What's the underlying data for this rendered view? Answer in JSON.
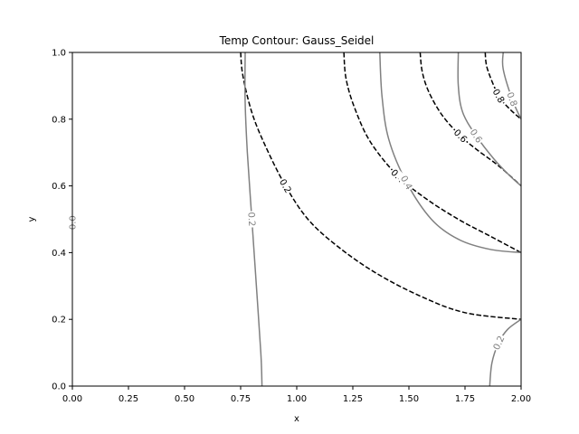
{
  "chart_data": {
    "type": "contour",
    "title": "Temp Contour: Gauss_Seidel",
    "xlabel": "x",
    "ylabel": "y",
    "xlim": [
      0.0,
      2.0
    ],
    "ylim": [
      0.0,
      1.0
    ],
    "x_ticks": [
      "0.00",
      "0.25",
      "0.50",
      "0.75",
      "1.00",
      "1.25",
      "1.50",
      "1.75",
      "2.00"
    ],
    "y_ticks": [
      "0.0",
      "0.2",
      "0.4",
      "0.6",
      "0.8",
      "1.0"
    ],
    "grid": false,
    "series": [
      {
        "style": "dashed",
        "color": "#000000",
        "contours": [
          {
            "label": "0.2",
            "label_at": [
              0.95,
              0.6
            ],
            "points": [
              [
                0.75,
                1.0
              ],
              [
                0.76,
                0.93
              ],
              [
                0.8,
                0.82
              ],
              [
                0.86,
                0.72
              ],
              [
                0.95,
                0.6
              ],
              [
                1.05,
                0.5
              ],
              [
                1.18,
                0.42
              ],
              [
                1.35,
                0.34
              ],
              [
                1.55,
                0.27
              ],
              [
                1.75,
                0.22
              ],
              [
                2.0,
                0.2
              ]
            ]
          },
          {
            "label": "0.4",
            "label_at": [
              1.45,
              0.63
            ],
            "points": [
              [
                1.21,
                1.0
              ],
              [
                1.22,
                0.92
              ],
              [
                1.26,
                0.83
              ],
              [
                1.33,
                0.73
              ],
              [
                1.45,
                0.63
              ],
              [
                1.58,
                0.56
              ],
              [
                1.72,
                0.5
              ],
              [
                1.86,
                0.45
              ],
              [
                2.0,
                0.4
              ]
            ]
          },
          {
            "label": "0.6",
            "label_at": [
              1.73,
              0.75
            ],
            "points": [
              [
                1.55,
                1.0
              ],
              [
                1.56,
                0.94
              ],
              [
                1.59,
                0.88
              ],
              [
                1.65,
                0.81
              ],
              [
                1.73,
                0.75
              ],
              [
                1.8,
                0.71
              ],
              [
                1.9,
                0.66
              ],
              [
                2.0,
                0.6
              ]
            ]
          },
          {
            "label": "0.8",
            "label_at": [
              1.9,
              0.87
            ],
            "points": [
              [
                1.84,
                1.0
              ],
              [
                1.85,
                0.95
              ],
              [
                1.9,
                0.87
              ],
              [
                1.95,
                0.83
              ],
              [
                2.0,
                0.8
              ]
            ]
          }
        ]
      },
      {
        "style": "solid",
        "color": "#808080",
        "contours": [
          {
            "label": "0.2",
            "label_at": [
              0.8,
              0.5
            ],
            "points": [
              [
                0.77,
                1.0
              ],
              [
                0.77,
                0.85
              ],
              [
                0.78,
                0.7
              ],
              [
                0.8,
                0.5
              ],
              [
                0.82,
                0.3
              ],
              [
                0.84,
                0.1
              ],
              [
                0.845,
                0.0
              ]
            ]
          },
          {
            "label": "0.4",
            "label_at": [
              1.49,
              0.61
            ],
            "points": [
              [
                1.37,
                1.0
              ],
              [
                1.38,
                0.87
              ],
              [
                1.41,
                0.74
              ],
              [
                1.49,
                0.61
              ],
              [
                1.6,
                0.5
              ],
              [
                1.72,
                0.44
              ],
              [
                1.86,
                0.41
              ],
              [
                2.0,
                0.4
              ]
            ]
          },
          {
            "label": "0.6",
            "label_at": [
              1.8,
              0.75
            ],
            "points": [
              [
                1.72,
                1.0
              ],
              [
                1.72,
                0.9
              ],
              [
                1.74,
                0.82
              ],
              [
                1.8,
                0.75
              ],
              [
                1.88,
                0.68
              ],
              [
                1.95,
                0.63
              ],
              [
                2.0,
                0.6
              ]
            ]
          },
          {
            "label": "0.8",
            "label_at": [
              1.96,
              0.86
            ],
            "points": [
              [
                1.92,
                1.0
              ],
              [
                1.92,
                0.95
              ],
              [
                1.96,
                0.86
              ],
              [
                2.0,
                0.8
              ]
            ]
          },
          {
            "label": "0.2",
            "label_at": [
              1.9,
              0.13
            ],
            "points": [
              [
                1.86,
                0.0
              ],
              [
                1.87,
                0.07
              ],
              [
                1.9,
                0.13
              ],
              [
                1.94,
                0.17
              ],
              [
                2.0,
                0.2
              ]
            ]
          },
          {
            "label": "0.0",
            "label_at": [
              0.0,
              0.49
            ],
            "points": []
          }
        ]
      }
    ]
  }
}
